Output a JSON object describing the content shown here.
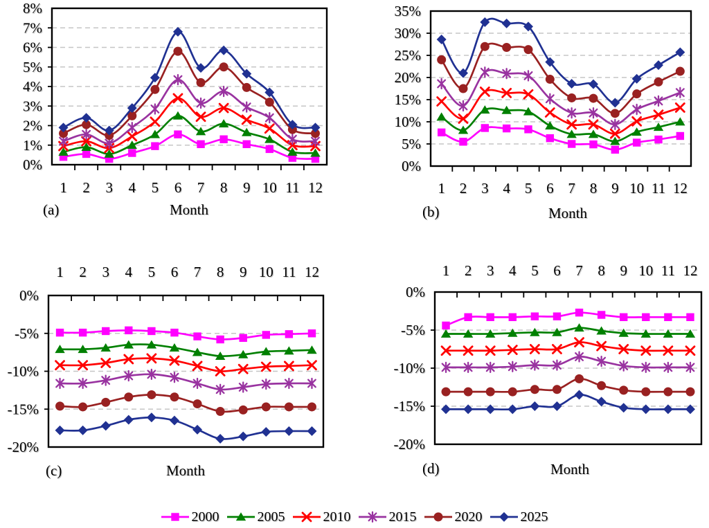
{
  "style": {
    "grid_color": "#c6c6c6",
    "frame_color": "#000000",
    "text_color": "#000000",
    "background": "#ffffff"
  },
  "legend": {
    "position": "bottom-center",
    "items": [
      {
        "label": "2000",
        "color": "#ff00ff",
        "marker": "square"
      },
      {
        "label": "2005",
        "color": "#008000",
        "marker": "triangle"
      },
      {
        "label": "2010",
        "color": "#ff0000",
        "marker": "x"
      },
      {
        "label": "2015",
        "color": "#9933a0",
        "marker": "asterisk"
      },
      {
        "label": "2020",
        "color": "#992121",
        "marker": "circle"
      },
      {
        "label": "2025",
        "color": "#203192",
        "marker": "diamond"
      }
    ]
  },
  "chart_data": [
    {
      "type": "line",
      "panel_label": "(a)",
      "xlabel": "Month",
      "x": [
        "1",
        "2",
        "3",
        "4",
        "5",
        "6",
        "7",
        "8",
        "9",
        "10",
        "11",
        "12"
      ],
      "x_axis_side": "bottom",
      "ylim": [
        0,
        8
      ],
      "grid": "horizontal-dashed",
      "yticks": [
        {
          "value": 0,
          "label": "0%"
        },
        {
          "value": 1,
          "label": "1%"
        },
        {
          "value": 2,
          "label": "2%"
        },
        {
          "value": 3,
          "label": "3%"
        },
        {
          "value": 4,
          "label": "4%"
        },
        {
          "value": 5,
          "label": "5%"
        },
        {
          "value": 6,
          "label": "6%"
        },
        {
          "value": 7,
          "label": "7%"
        },
        {
          "value": 8,
          "label": "8%"
        }
      ],
      "series": [
        {
          "name": "2000",
          "values": [
            0.4,
            0.55,
            0.3,
            0.6,
            0.95,
            1.55,
            1.05,
            1.3,
            1.05,
            0.8,
            0.35,
            0.3
          ]
        },
        {
          "name": "2005",
          "values": [
            0.65,
            0.9,
            0.55,
            1.0,
            1.55,
            2.5,
            1.7,
            2.1,
            1.65,
            1.3,
            0.65,
            0.6
          ]
        },
        {
          "name": "2010",
          "values": [
            0.95,
            1.2,
            0.85,
            1.45,
            2.2,
            3.4,
            2.45,
            2.9,
            2.3,
            1.85,
            1.0,
            0.95
          ]
        },
        {
          "name": "2015",
          "values": [
            1.2,
            1.55,
            1.1,
            1.9,
            2.85,
            4.35,
            3.15,
            3.75,
            2.95,
            2.4,
            1.3,
            1.2
          ]
        },
        {
          "name": "2020",
          "values": [
            1.6,
            2.05,
            1.5,
            2.5,
            3.85,
            5.8,
            4.2,
            5.0,
            3.95,
            3.2,
            1.8,
            1.6
          ]
        },
        {
          "name": "2025",
          "values": [
            1.9,
            2.4,
            1.75,
            2.9,
            4.45,
            6.8,
            4.95,
            5.85,
            4.65,
            3.7,
            2.05,
            1.9
          ]
        }
      ]
    },
    {
      "type": "line",
      "panel_label": "(b)",
      "xlabel": "Month",
      "x": [
        "1",
        "2",
        "3",
        "4",
        "5",
        "6",
        "7",
        "8",
        "9",
        "10",
        "11",
        "12"
      ],
      "x_axis_side": "bottom",
      "ylim": [
        0,
        35
      ],
      "grid": "horizontal-dashed",
      "yticks": [
        {
          "value": 0,
          "label": "0%"
        },
        {
          "value": 5,
          "label": "5%"
        },
        {
          "value": 10,
          "label": "10%"
        },
        {
          "value": 15,
          "label": "15%"
        },
        {
          "value": 20,
          "label": "20%"
        },
        {
          "value": 25,
          "label": "25%"
        },
        {
          "value": 30,
          "label": "30%"
        },
        {
          "value": 35,
          "label": "35%"
        }
      ],
      "series": [
        {
          "name": "2000",
          "values": [
            7.6,
            5.5,
            8.6,
            8.5,
            8.3,
            6.3,
            5.0,
            4.9,
            3.7,
            5.3,
            6.0,
            6.8
          ]
        },
        {
          "name": "2005",
          "values": [
            11.1,
            8.1,
            12.7,
            12.6,
            12.3,
            9.1,
            7.2,
            7.2,
            5.6,
            7.7,
            8.8,
            10.0
          ]
        },
        {
          "name": "2010",
          "values": [
            14.6,
            10.7,
            16.8,
            16.5,
            16.2,
            12.1,
            9.4,
            9.4,
            7.3,
            10.1,
            11.6,
            13.2
          ]
        },
        {
          "name": "2015",
          "values": [
            18.6,
            13.6,
            21.2,
            20.9,
            20.4,
            15.2,
            12.0,
            12.0,
            9.4,
            12.8,
            14.7,
            16.6
          ]
        },
        {
          "name": "2020",
          "values": [
            24.0,
            17.5,
            27.0,
            26.8,
            26.3,
            19.6,
            15.4,
            15.3,
            11.9,
            16.3,
            19.0,
            21.4
          ]
        },
        {
          "name": "2025",
          "values": [
            28.6,
            21.0,
            32.5,
            32.2,
            31.5,
            23.5,
            18.6,
            18.5,
            14.3,
            19.7,
            22.8,
            25.7
          ]
        }
      ]
    },
    {
      "type": "line",
      "panel_label": "(c)",
      "xlabel": "Month",
      "x": [
        "1",
        "2",
        "3",
        "4",
        "5",
        "6",
        "7",
        "8",
        "9",
        "10",
        "11",
        "12"
      ],
      "x_axis_side": "top",
      "ylim": [
        -20,
        0
      ],
      "grid": "horizontal-dashed",
      "yticks": [
        {
          "value": 0,
          "label": "0%"
        },
        {
          "value": -5,
          "label": "-5%"
        },
        {
          "value": -10,
          "label": "-10%"
        },
        {
          "value": -15,
          "label": "-15%"
        },
        {
          "value": -20,
          "label": "-20%"
        }
      ],
      "series": [
        {
          "name": "2000",
          "values": [
            -4.9,
            -4.9,
            -4.7,
            -4.6,
            -4.7,
            -4.9,
            -5.4,
            -5.8,
            -5.6,
            -5.2,
            -5.1,
            -5.0
          ]
        },
        {
          "name": "2005",
          "values": [
            -7.1,
            -7.1,
            -6.9,
            -6.5,
            -6.5,
            -6.9,
            -7.5,
            -8.0,
            -7.8,
            -7.4,
            -7.3,
            -7.2
          ]
        },
        {
          "name": "2010",
          "values": [
            -9.2,
            -9.2,
            -8.9,
            -8.4,
            -8.3,
            -8.6,
            -9.3,
            -10.0,
            -9.7,
            -9.4,
            -9.3,
            -9.2
          ]
        },
        {
          "name": "2015",
          "values": [
            -11.6,
            -11.6,
            -11.2,
            -10.6,
            -10.4,
            -10.8,
            -11.6,
            -12.4,
            -12.1,
            -11.7,
            -11.6,
            -11.6
          ]
        },
        {
          "name": "2020",
          "values": [
            -14.6,
            -14.7,
            -14.1,
            -13.4,
            -13.1,
            -13.4,
            -14.3,
            -15.3,
            -15.1,
            -14.7,
            -14.7,
            -14.7
          ]
        },
        {
          "name": "2025",
          "values": [
            -17.8,
            -17.8,
            -17.2,
            -16.4,
            -16.1,
            -16.5,
            -17.7,
            -18.9,
            -18.6,
            -18.0,
            -17.9,
            -17.9
          ]
        }
      ]
    },
    {
      "type": "line",
      "panel_label": "(d)",
      "xlabel": "Month",
      "x": [
        "1",
        "2",
        "3",
        "4",
        "5",
        "6",
        "7",
        "8",
        "9",
        "10",
        "11",
        "12"
      ],
      "x_axis_side": "top",
      "ylim": [
        -20,
        0
      ],
      "grid": "horizontal-dashed",
      "yticks": [
        {
          "value": 0,
          "label": "0%"
        },
        {
          "value": -5,
          "label": "-5%"
        },
        {
          "value": -10,
          "label": "-10%"
        },
        {
          "value": -15,
          "label": "-15%"
        },
        {
          "value": -20,
          "label": "-20%"
        }
      ],
      "series": [
        {
          "name": "2000",
          "values": [
            -4.4,
            -3.3,
            -3.3,
            -3.3,
            -3.2,
            -3.2,
            -2.7,
            -3.0,
            -3.3,
            -3.3,
            -3.3,
            -3.3
          ]
        },
        {
          "name": "2005",
          "values": [
            -5.5,
            -5.5,
            -5.5,
            -5.4,
            -5.3,
            -5.3,
            -4.7,
            -5.1,
            -5.4,
            -5.5,
            -5.5,
            -5.5
          ]
        },
        {
          "name": "2010",
          "values": [
            -7.7,
            -7.7,
            -7.7,
            -7.6,
            -7.5,
            -7.5,
            -6.6,
            -7.1,
            -7.5,
            -7.7,
            -7.7,
            -7.7
          ]
        },
        {
          "name": "2015",
          "values": [
            -9.9,
            -9.9,
            -9.9,
            -9.8,
            -9.6,
            -9.6,
            -8.5,
            -9.1,
            -9.7,
            -9.9,
            -9.9,
            -9.9
          ]
        },
        {
          "name": "2020",
          "values": [
            -13.1,
            -13.1,
            -13.1,
            -13.1,
            -12.8,
            -12.8,
            -11.4,
            -12.3,
            -12.9,
            -13.1,
            -13.1,
            -13.1
          ]
        },
        {
          "name": "2025",
          "values": [
            -15.4,
            -15.4,
            -15.4,
            -15.4,
            -15.0,
            -15.0,
            -13.5,
            -14.4,
            -15.2,
            -15.4,
            -15.4,
            -15.4
          ]
        }
      ]
    }
  ]
}
